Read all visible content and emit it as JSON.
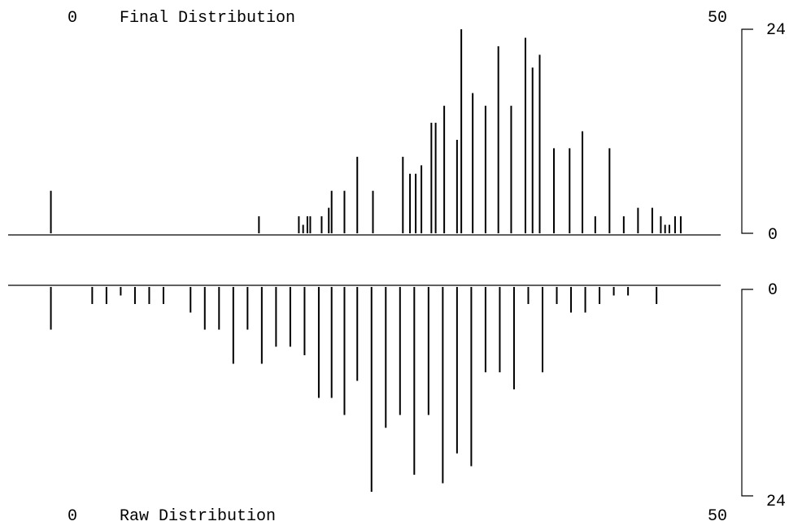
{
  "chart_data": [
    {
      "type": "bar",
      "title": "Final Distribution",
      "x_start_label": "0",
      "x_end_label": "50",
      "y_min_label": "0",
      "y_max_label": "24",
      "ylim": [
        0,
        24
      ],
      "x": [
        3,
        17.6,
        20.4,
        20.7,
        21,
        21.2,
        22,
        22.5,
        22.7,
        23.6,
        24.5,
        25.6,
        27.7,
        28.2,
        28.6,
        29,
        29.7,
        30,
        30.6,
        31.5,
        31.8,
        32.6,
        33.5,
        34.4,
        35.3,
        36.3,
        36.8,
        37.3,
        38.3,
        39.4,
        40.3,
        41.2,
        42.2,
        43.2,
        44.2,
        45.2,
        45.8,
        46.1,
        46.4,
        46.8,
        47.2
      ],
      "values": [
        5,
        2,
        2,
        1,
        2,
        2,
        2,
        3,
        5,
        5,
        9,
        5,
        9,
        7,
        7,
        8,
        13,
        13,
        15,
        11,
        24,
        16.5,
        15,
        22,
        15,
        23,
        19.5,
        21,
        10,
        10,
        12,
        2,
        10,
        2,
        3,
        3,
        2,
        1,
        1,
        2,
        2
      ]
    },
    {
      "type": "bar",
      "title": "Raw Distribution",
      "x_start_label": "0",
      "x_end_label": "50",
      "y_min_label": "0",
      "y_max_label": "24",
      "ylim": [
        0,
        24
      ],
      "x": [
        3,
        5.9,
        6.9,
        7.9,
        8.9,
        9.9,
        10.9,
        12.8,
        13.8,
        14.8,
        15.8,
        16.8,
        17.8,
        18.8,
        19.8,
        20.8,
        21.8,
        22.7,
        23.6,
        24.5,
        25.5,
        26.5,
        27.5,
        28.5,
        29.5,
        30.5,
        31.5,
        32.5,
        33.5,
        34.5,
        35.5,
        36.5,
        37.5,
        38.5,
        39.5,
        40.5,
        41.5,
        42.5,
        43.5,
        45.5
      ],
      "values": [
        5,
        2,
        2,
        1,
        2,
        2,
        2,
        3,
        5,
        5,
        9,
        5,
        9,
        7,
        7,
        8,
        13,
        13,
        15,
        11,
        24,
        16.5,
        15,
        22,
        15,
        23,
        19.5,
        21,
        10,
        10,
        12,
        2,
        10,
        2,
        3,
        3,
        2,
        1,
        1,
        2
      ]
    }
  ]
}
